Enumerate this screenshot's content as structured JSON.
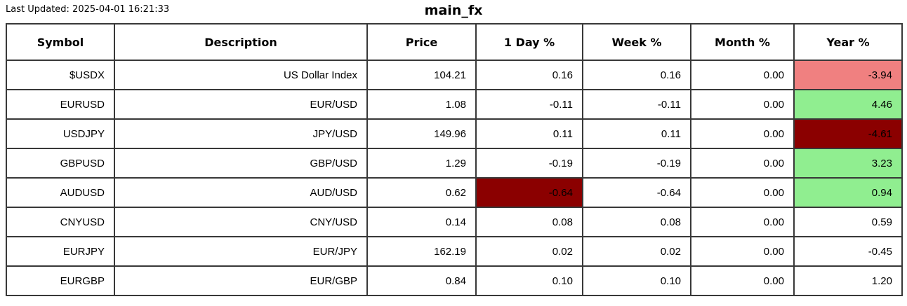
{
  "meta": {
    "last_updated_label": "Last Updated: 2025-04-01 16:21:33",
    "title": "main_fx"
  },
  "colors": {
    "positive": "#90EE90",
    "strong_negative": "#8B0000",
    "mild_negative": "#F08080",
    "border": "#383838",
    "text": "#000000",
    "background": "#FFFFFF"
  },
  "chart_data": {
    "type": "table",
    "title": "main_fx",
    "subtitle": "Last Updated: 2025-04-01 16:21:33",
    "columns": [
      "Symbol",
      "Description",
      "Price",
      "1 Day %",
      "Week %",
      "Month %",
      "Year %"
    ],
    "rows": [
      [
        "$USDX",
        "US Dollar Index",
        "104.21",
        "0.16",
        "0.16",
        "0.00",
        "-3.94"
      ],
      [
        "EURUSD",
        "EUR/USD",
        "1.08",
        "-0.11",
        "-0.11",
        "0.00",
        "4.46"
      ],
      [
        "USDJPY",
        "JPY/USD",
        "149.96",
        "0.11",
        "0.11",
        "0.00",
        "-4.61"
      ],
      [
        "GBPUSD",
        "GBP/USD",
        "1.29",
        "-0.19",
        "-0.19",
        "0.00",
        "3.23"
      ],
      [
        "AUDUSD",
        "AUD/USD",
        "0.62",
        "-0.64",
        "-0.64",
        "0.00",
        "0.94"
      ],
      [
        "CNYUSD",
        "CNY/USD",
        "0.14",
        "0.08",
        "0.08",
        "0.00",
        "0.59"
      ],
      [
        "EURJPY",
        "EUR/JPY",
        "162.19",
        "0.02",
        "0.02",
        "0.00",
        "-0.45"
      ],
      [
        "EURGBP",
        "EUR/GBP",
        "0.84",
        "0.10",
        "0.10",
        "0.00",
        "1.20"
      ]
    ],
    "cell_highlights": [
      {
        "row": 0,
        "col": 6,
        "colorKey": "mild_negative"
      },
      {
        "row": 1,
        "col": 6,
        "colorKey": "positive"
      },
      {
        "row": 2,
        "col": 6,
        "colorKey": "strong_negative"
      },
      {
        "row": 3,
        "col": 6,
        "colorKey": "positive"
      },
      {
        "row": 4,
        "col": 3,
        "colorKey": "strong_negative"
      },
      {
        "row": 4,
        "col": 6,
        "colorKey": "positive"
      }
    ],
    "layout": {
      "grid": true,
      "header_bold": true,
      "cell_text_align": "right",
      "header_text_align": "center"
    }
  }
}
